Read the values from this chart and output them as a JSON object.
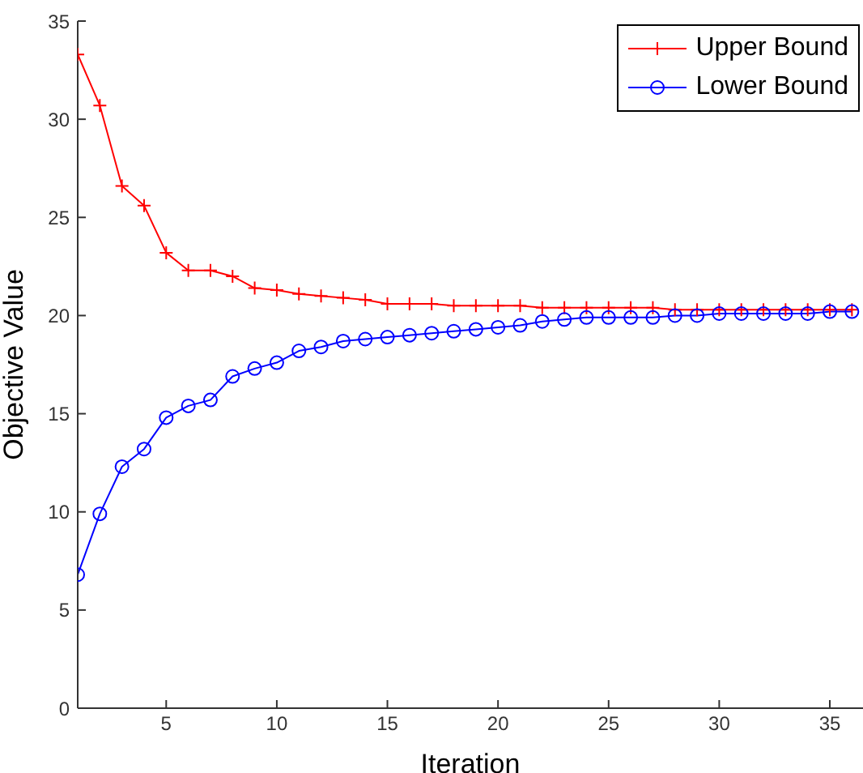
{
  "chart_data": {
    "type": "line",
    "xlabel": "Iteration",
    "ylabel": "Objective Value",
    "x": [
      1,
      2,
      3,
      4,
      5,
      6,
      7,
      8,
      9,
      10,
      11,
      12,
      13,
      14,
      15,
      16,
      17,
      18,
      19,
      20,
      21,
      22,
      23,
      24,
      25,
      26,
      27,
      28,
      29,
      30,
      31,
      32,
      33,
      34,
      35,
      36
    ],
    "series": [
      {
        "name": "Upper Bound",
        "color": "#ff0000",
        "marker": "cross",
        "values": [
          33.3,
          30.7,
          26.6,
          25.6,
          23.2,
          22.3,
          22.3,
          22.0,
          21.4,
          21.3,
          21.1,
          21.0,
          20.9,
          20.8,
          20.6,
          20.6,
          20.6,
          20.5,
          20.5,
          20.5,
          20.5,
          20.4,
          20.4,
          20.4,
          20.4,
          20.4,
          20.4,
          20.3,
          20.3,
          20.3,
          20.3,
          20.3,
          20.3,
          20.3,
          20.3,
          20.3
        ]
      },
      {
        "name": "Lower Bound",
        "color": "#0000ff",
        "marker": "circle",
        "values": [
          6.8,
          9.9,
          12.3,
          13.2,
          14.8,
          15.4,
          15.7,
          16.9,
          17.3,
          17.6,
          18.2,
          18.4,
          18.7,
          18.8,
          18.9,
          19.0,
          19.1,
          19.2,
          19.3,
          19.4,
          19.5,
          19.7,
          19.8,
          19.9,
          19.9,
          19.9,
          19.9,
          20.0,
          20.0,
          20.1,
          20.1,
          20.1,
          20.1,
          20.1,
          20.2,
          20.2
        ]
      }
    ],
    "xlim": [
      1,
      36.5
    ],
    "xticks": [
      5,
      10,
      15,
      20,
      25,
      30,
      35
    ],
    "ylim": [
      0,
      35
    ],
    "yticks": [
      0,
      5,
      10,
      15,
      20,
      25,
      30,
      35
    ],
    "grid": false,
    "legend": "top right",
    "line_style": "solid"
  }
}
